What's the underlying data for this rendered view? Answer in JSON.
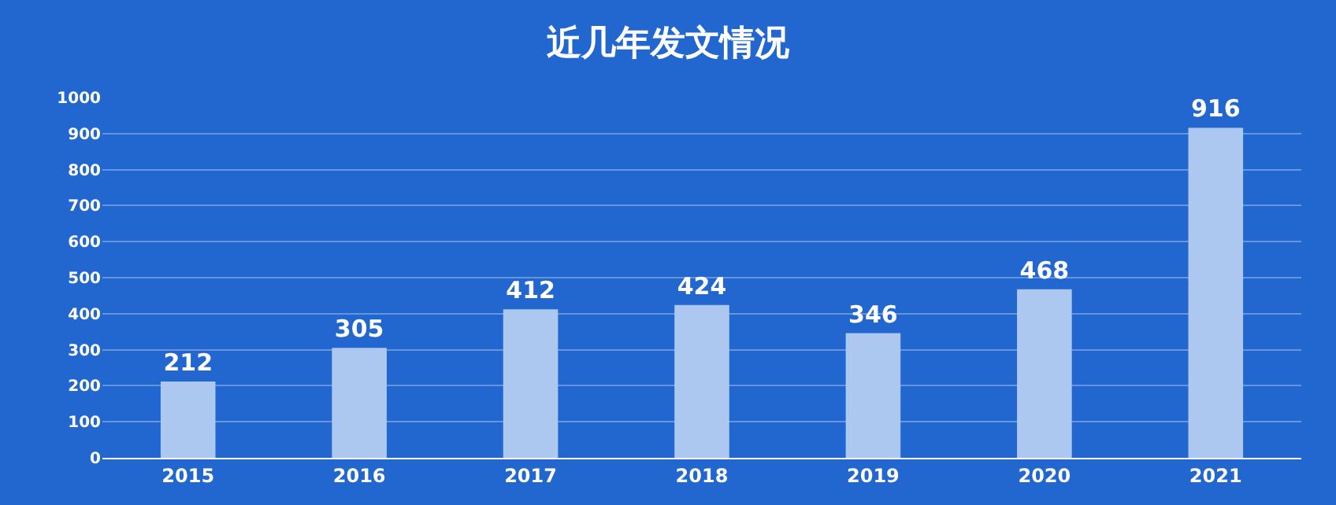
{
  "chart_data": {
    "type": "bar",
    "title": "近几年发文情况",
    "categories": [
      "2015",
      "2016",
      "2017",
      "2018",
      "2019",
      "2020",
      "2021"
    ],
    "values": [
      212,
      305,
      412,
      424,
      346,
      468,
      916
    ],
    "color": "#adc8f0",
    "ylim": [
      0,
      1000
    ],
    "yticks": [
      0,
      100,
      200,
      300,
      400,
      500,
      600,
      700,
      800,
      900,
      1000
    ],
    "grid": "y",
    "data_labels": true,
    "legend": false
  }
}
